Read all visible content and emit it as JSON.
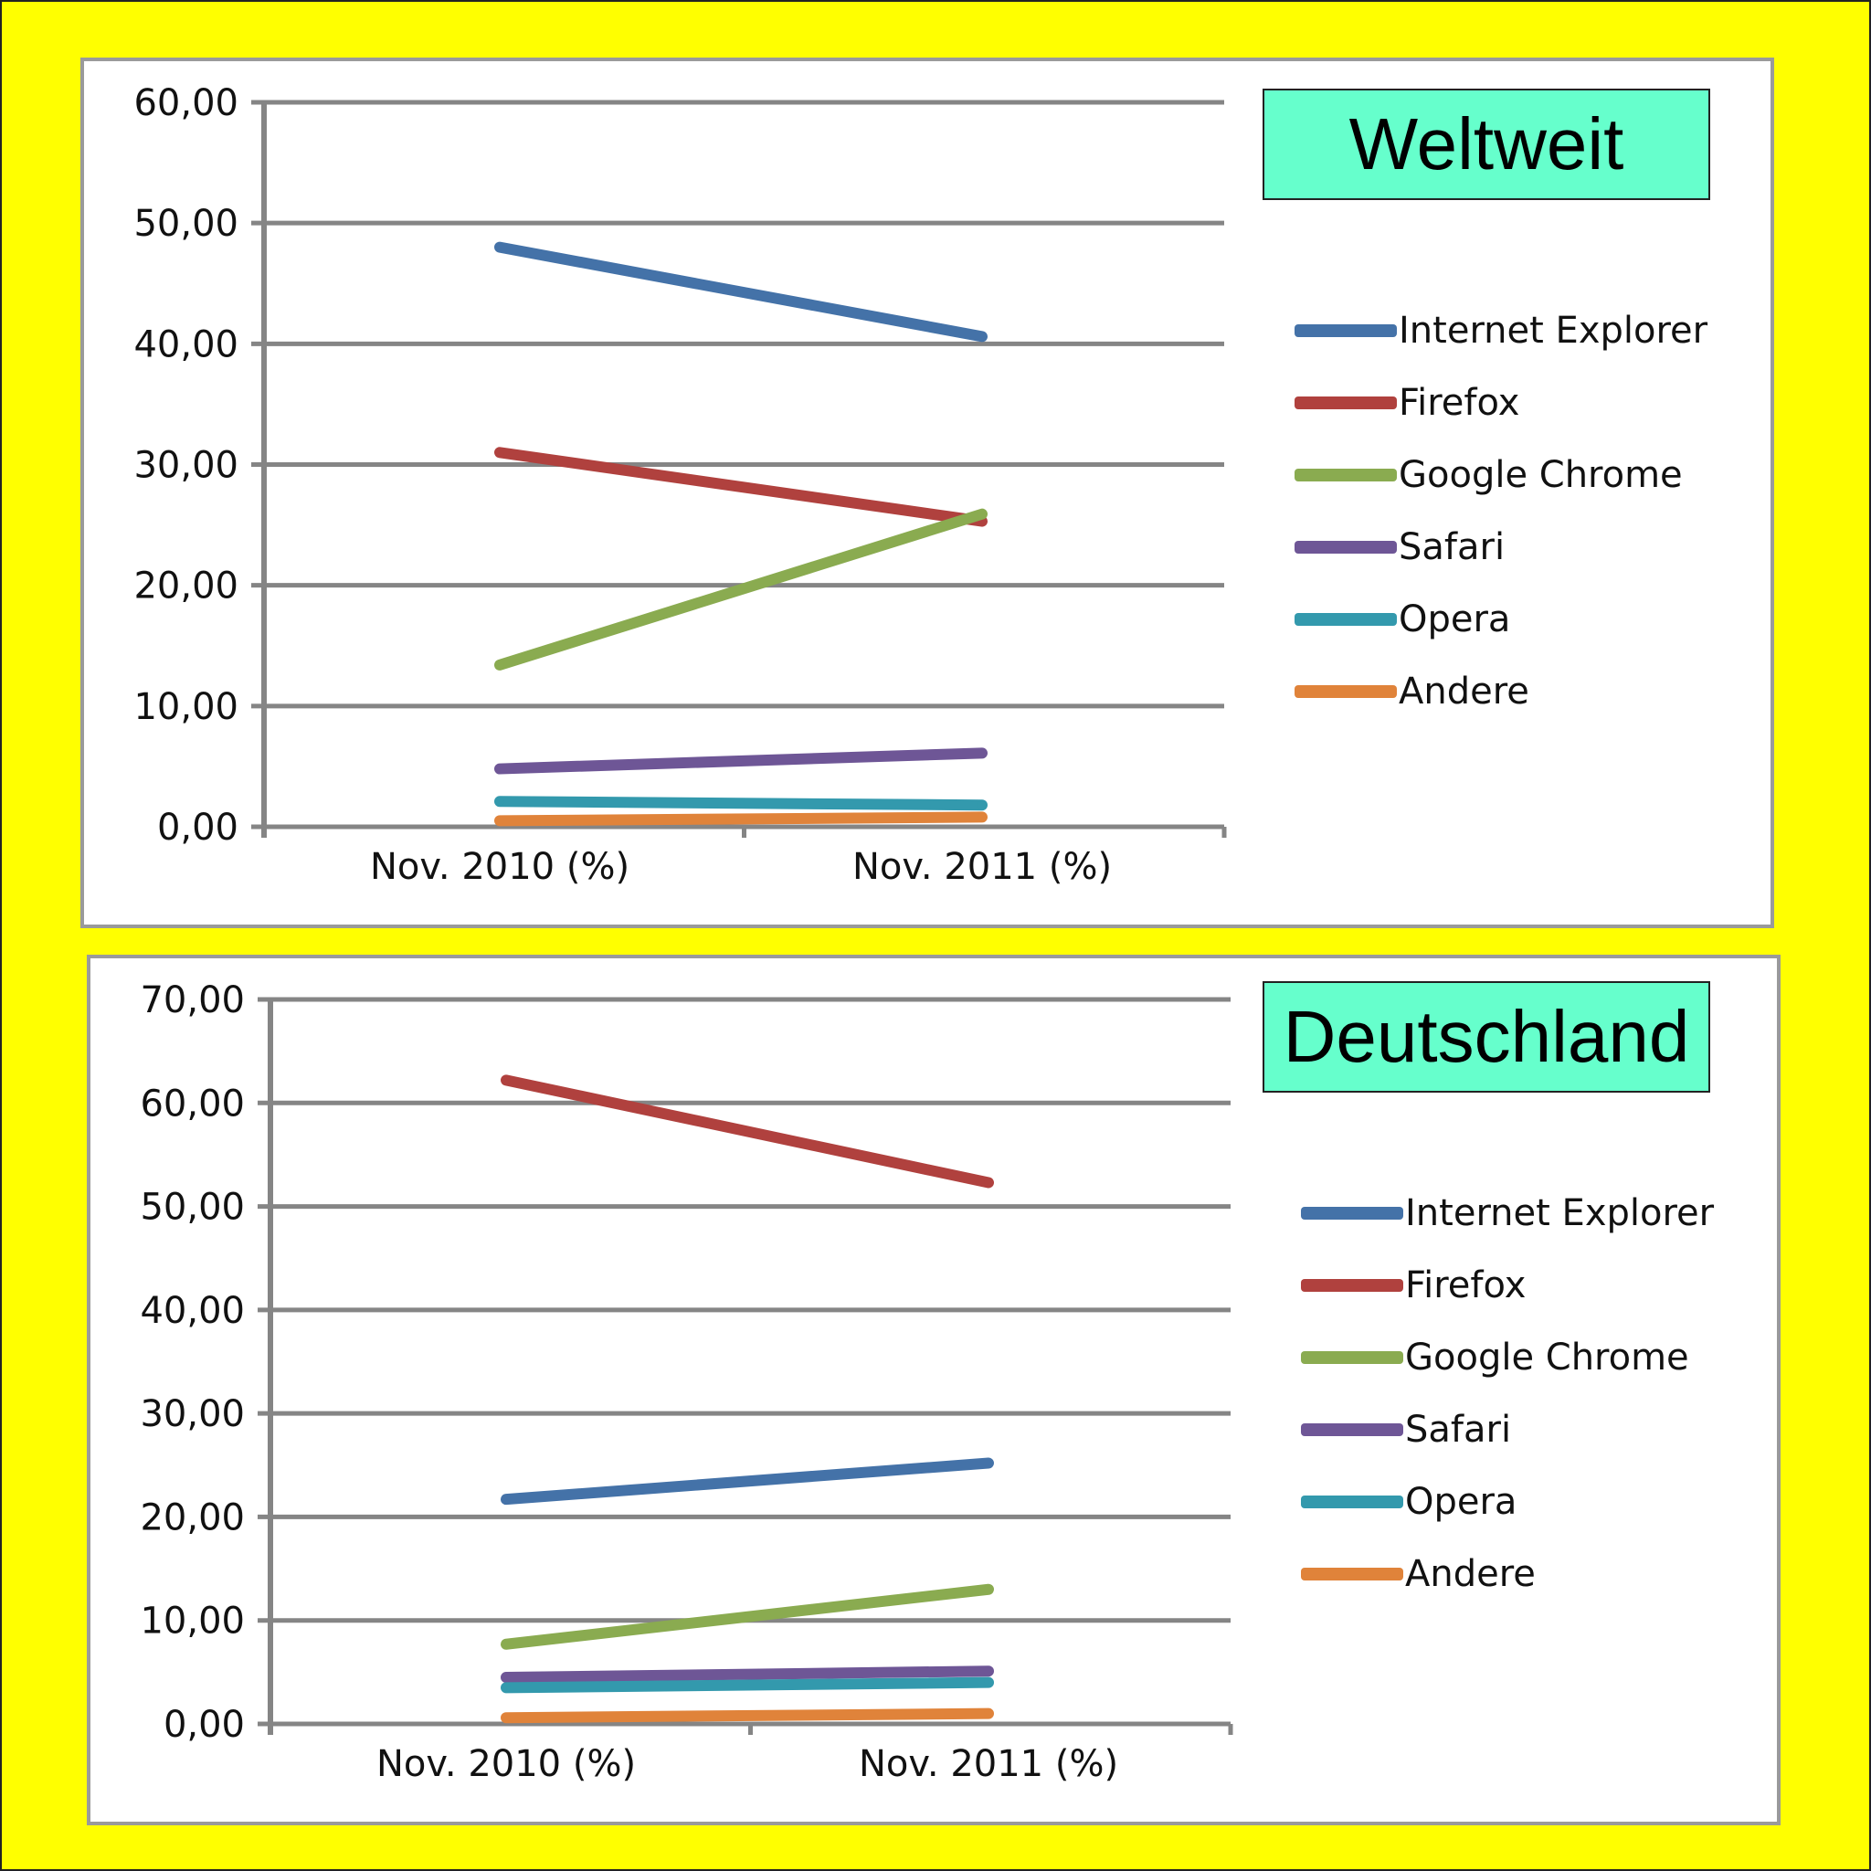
{
  "chart_data": [
    {
      "type": "line",
      "title": "Weltweit",
      "categories": [
        "Nov. 2010 (%)",
        "Nov. 2011 (%)"
      ],
      "ylim": [
        0,
        60
      ],
      "yticks": [
        "0,00",
        "10,00",
        "20,00",
        "30,00",
        "40,00",
        "50,00",
        "60,00"
      ],
      "grid": true,
      "legend": "right",
      "series": [
        {
          "name": "Internet Explorer",
          "values": [
            48.0,
            40.6
          ],
          "color": "#4472a8"
        },
        {
          "name": "Firefox",
          "values": [
            31.0,
            25.3
          ],
          "color": "#b0413e"
        },
        {
          "name": "Google Chrome",
          "values": [
            13.4,
            25.9
          ],
          "color": "#8aab50"
        },
        {
          "name": "Safari",
          "values": [
            4.8,
            6.1
          ],
          "color": "#6e5696"
        },
        {
          "name": "Opera",
          "values": [
            2.1,
            1.8
          ],
          "color": "#3399ad"
        },
        {
          "name": "Andere",
          "values": [
            0.5,
            0.8
          ],
          "color": "#e0833a"
        }
      ]
    },
    {
      "type": "line",
      "title": "Deutschland",
      "categories": [
        "Nov. 2010 (%)",
        "Nov. 2011 (%)"
      ],
      "ylim": [
        0,
        70
      ],
      "yticks": [
        "0,00",
        "10,00",
        "20,00",
        "30,00",
        "40,00",
        "50,00",
        "60,00",
        "70,00"
      ],
      "grid": true,
      "legend": "right",
      "series": [
        {
          "name": "Internet Explorer",
          "values": [
            21.7,
            25.2
          ],
          "color": "#4472a8"
        },
        {
          "name": "Firefox",
          "values": [
            62.2,
            52.3
          ],
          "color": "#b0413e"
        },
        {
          "name": "Google Chrome",
          "values": [
            7.7,
            13.0
          ],
          "color": "#8aab50"
        },
        {
          "name": "Safari",
          "values": [
            4.5,
            5.1
          ],
          "color": "#6e5696"
        },
        {
          "name": "Opera",
          "values": [
            3.5,
            4.0
          ],
          "color": "#3399ad"
        },
        {
          "name": "Andere",
          "values": [
            0.6,
            1.0
          ],
          "color": "#e0833a"
        }
      ]
    }
  ]
}
